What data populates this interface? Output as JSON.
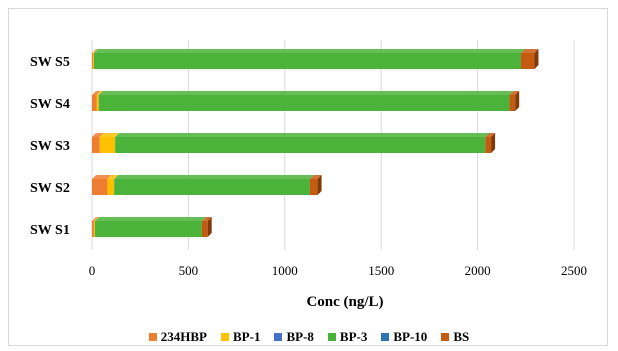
{
  "chart_data": {
    "type": "bar",
    "orientation": "horizontal",
    "stacked": true,
    "categories": [
      "SW S1",
      "SW S2",
      "SW S3",
      "SW S4",
      "SW S5"
    ],
    "series": [
      {
        "name": "234HBP",
        "color": "#ed7d31",
        "values": [
          10,
          80,
          40,
          25,
          5
        ]
      },
      {
        "name": "BP-1",
        "color": "#ffc000",
        "values": [
          5,
          35,
          80,
          10,
          5
        ]
      },
      {
        "name": "BP-8",
        "color": "#4472c4",
        "values": [
          0,
          0,
          0,
          0,
          0
        ]
      },
      {
        "name": "BP-3",
        "color": "#4cb33a",
        "values": [
          555,
          1015,
          1920,
          2130,
          2215
        ]
      },
      {
        "name": "BP-10",
        "color": "#2e75b6",
        "values": [
          0,
          0,
          0,
          0,
          0
        ]
      },
      {
        "name": "BS",
        "color": "#c55a11",
        "values": [
          30,
          40,
          30,
          30,
          70
        ]
      }
    ],
    "xlabel": "Conc (ng/L)",
    "xlim": [
      0,
      2500
    ],
    "xticks": [
      0,
      500,
      1000,
      1500,
      2000,
      2500
    ],
    "grid": "vertical",
    "legend_position": "bottom"
  }
}
